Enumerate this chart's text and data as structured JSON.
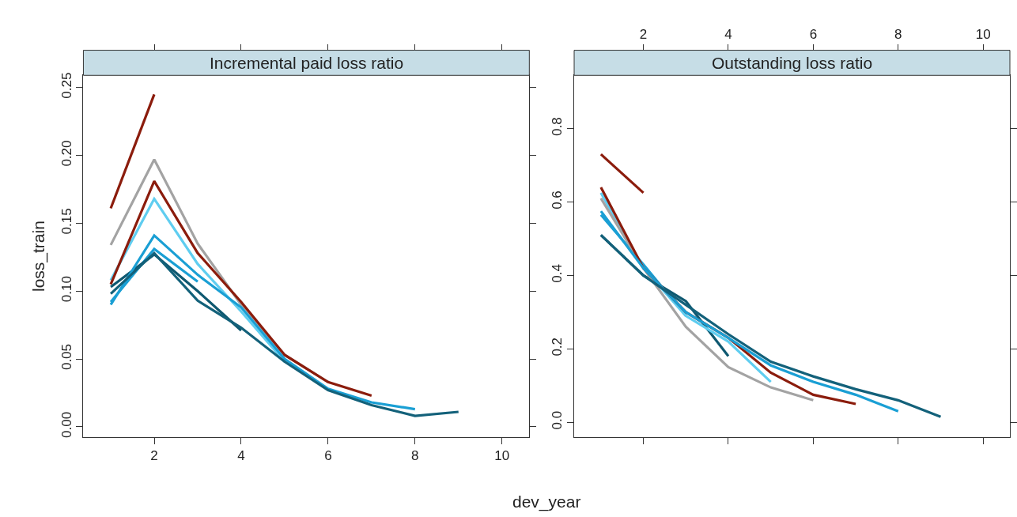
{
  "chart_data": [
    {
      "type": "line",
      "title": "Incremental paid loss ratio",
      "xlabel": "dev_year",
      "ylabel": "loss_train",
      "xlim": [
        0.37,
        10.63
      ],
      "xticks": [
        2,
        4,
        6,
        8,
        10
      ],
      "ylim": [
        -0.0075,
        0.259
      ],
      "yticks": [
        {
          "value": 0,
          "label": "0.00"
        },
        {
          "value": 0.05,
          "label": "0.05"
        },
        {
          "value": 0.1,
          "label": "0.10"
        },
        {
          "value": 0.15,
          "label": "0.15"
        },
        {
          "value": 0.2,
          "label": "0.20"
        },
        {
          "value": 0.25,
          "label": "0.25"
        }
      ],
      "marker": "none",
      "line_style": "solid",
      "series": [
        {
          "color": "#8b1c0c",
          "x": [
            1,
            2
          ],
          "values": [
            0.161,
            0.245
          ]
        },
        {
          "color": "#1a9fd4",
          "x": [
            1,
            2,
            3
          ],
          "values": [
            0.092,
            0.131,
            0.107
          ]
        },
        {
          "color": "#0e5870",
          "x": [
            1,
            2,
            3,
            4
          ],
          "values": [
            0.103,
            0.127,
            0.1,
            0.071
          ]
        },
        {
          "color": "#5fcdf0",
          "x": [
            1,
            2,
            3,
            4,
            5
          ],
          "values": [
            0.108,
            0.168,
            0.12,
            0.085,
            0.048
          ]
        },
        {
          "color": "#a3a3a3",
          "x": [
            1,
            2,
            3,
            4,
            5,
            6
          ],
          "values": [
            0.134,
            0.197,
            0.135,
            0.09,
            0.053,
            0.033
          ]
        },
        {
          "color": "#8b1c0c",
          "x": [
            1,
            2,
            3,
            4,
            5,
            6,
            7
          ],
          "values": [
            0.105,
            0.181,
            0.128,
            0.092,
            0.053,
            0.033,
            0.023
          ]
        },
        {
          "color": "#1a9fd4",
          "x": [
            1,
            2,
            3,
            4,
            5,
            6,
            7,
            8
          ],
          "values": [
            0.09,
            0.141,
            0.112,
            0.088,
            0.05,
            0.028,
            0.018,
            0.013
          ]
        },
        {
          "color": "#13617a",
          "x": [
            1,
            2,
            3,
            4,
            5,
            6,
            7,
            8,
            9
          ],
          "values": [
            0.098,
            0.128,
            0.093,
            0.073,
            0.048,
            0.027,
            0.016,
            0.008,
            0.011
          ]
        }
      ]
    },
    {
      "type": "line",
      "title": "Outstanding loss ratio",
      "xlim": [
        0.37,
        10.63
      ],
      "xticks": [
        2,
        4,
        6,
        8,
        10
      ],
      "ylim": [
        -0.04,
        0.945
      ],
      "yticks": [
        {
          "value": 0,
          "label": "0.0"
        },
        {
          "value": 0.2,
          "label": "0.2"
        },
        {
          "value": 0.4,
          "label": "0.4"
        },
        {
          "value": 0.6,
          "label": "0.6"
        },
        {
          "value": 0.8,
          "label": "0.8"
        }
      ],
      "marker": "none",
      "line_style": "solid",
      "series": [
        {
          "color": "#8b1c0c",
          "x": [
            1,
            2
          ],
          "values": [
            0.73,
            0.625
          ]
        },
        {
          "color": "#1a9fd4",
          "x": [
            1,
            2,
            3
          ],
          "values": [
            0.565,
            0.43,
            0.29
          ]
        },
        {
          "color": "#0e5870",
          "x": [
            1,
            2,
            3,
            4
          ],
          "values": [
            0.51,
            0.4,
            0.33,
            0.18
          ]
        },
        {
          "color": "#5fcdf0",
          "x": [
            1,
            2,
            3,
            4,
            5
          ],
          "values": [
            0.625,
            0.42,
            0.29,
            0.22,
            0.11
          ]
        },
        {
          "color": "#a3a3a3",
          "x": [
            1,
            2,
            3,
            4,
            5,
            6
          ],
          "values": [
            0.61,
            0.42,
            0.26,
            0.15,
            0.095,
            0.06
          ]
        },
        {
          "color": "#8b1c0c",
          "x": [
            1,
            2,
            3,
            4,
            5,
            6,
            7
          ],
          "values": [
            0.64,
            0.42,
            0.3,
            0.23,
            0.135,
            0.075,
            0.05
          ]
        },
        {
          "color": "#1a9fd4",
          "x": [
            1,
            2,
            3,
            4,
            5,
            6,
            7,
            8
          ],
          "values": [
            0.575,
            0.42,
            0.3,
            0.23,
            0.155,
            0.11,
            0.075,
            0.03
          ]
        },
        {
          "color": "#13617a",
          "x": [
            1,
            2,
            3,
            4,
            5,
            6,
            7,
            8,
            9
          ],
          "values": [
            0.51,
            0.4,
            0.32,
            0.24,
            0.165,
            0.125,
            0.09,
            0.06,
            0.015
          ]
        }
      ]
    }
  ]
}
